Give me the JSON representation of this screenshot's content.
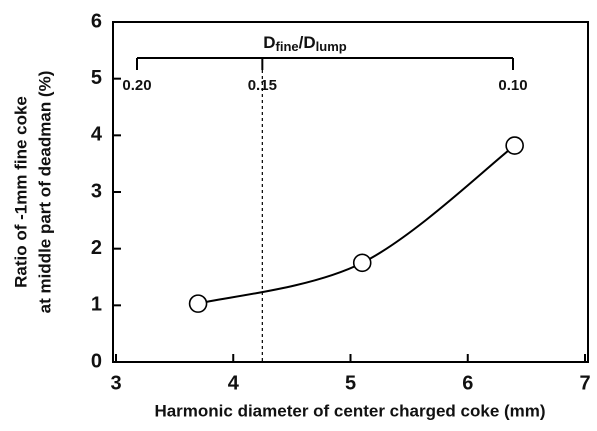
{
  "chart_data": {
    "type": "line",
    "xlabel": "Harmonic diameter of center charged coke (mm)",
    "ylabel": [
      "Ratio of -1mm fine coke",
      "at middle part of deadman (%)"
    ],
    "x": [
      3.7,
      5.1,
      6.4
    ],
    "series": [
      {
        "color": "#000000",
        "values": [
          1.03,
          1.75,
          3.82
        ]
      }
    ],
    "smooth": true,
    "marker": "open-circle",
    "xlim": [
      3,
      7
    ],
    "xticks": [
      3,
      4,
      5,
      6,
      7
    ],
    "ylim": [
      0,
      6
    ],
    "yticks": [
      0,
      1,
      2,
      3,
      4,
      5,
      6
    ],
    "x2label": [
      {
        "text": "D"
      },
      {
        "text": "fine",
        "sub": true
      },
      {
        "text": "/D"
      },
      {
        "text": "lump",
        "sub": true
      }
    ],
    "x2scale": "reciprocal",
    "x2lim": [
      0.2,
      0.1
    ],
    "x2ticks": [
      {
        "value": 0.2,
        "label": "0.20"
      },
      0.15,
      {
        "value": 0.1,
        "label": "0.10"
      }
    ],
    "x2_reference_line": 0.15
  }
}
